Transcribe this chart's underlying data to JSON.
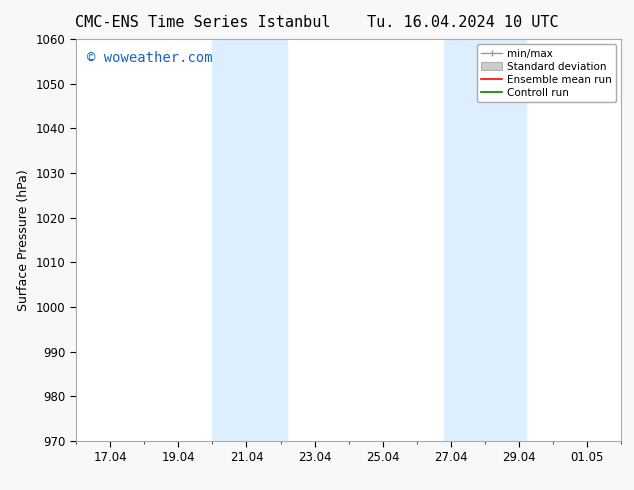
{
  "title_left": "CMC-ENS Time Series Istanbul",
  "title_right": "Tu. 16.04.2024 10 UTC",
  "ylabel": "Surface Pressure (hPa)",
  "ylim": [
    970,
    1060
  ],
  "yticks": [
    970,
    980,
    990,
    1000,
    1010,
    1020,
    1030,
    1040,
    1050,
    1060
  ],
  "xtick_labels": [
    "17.04",
    "19.04",
    "21.04",
    "23.04",
    "25.04",
    "27.04",
    "29.04",
    "01.05"
  ],
  "xtick_values": [
    17,
    19,
    21,
    23,
    25,
    27,
    29,
    31
  ],
  "xmin": 16,
  "xmax": 32,
  "shaded_regions": [
    {
      "xmin": 20.0,
      "xmax": 22.2,
      "color": "#ddeeff"
    },
    {
      "xmin": 26.8,
      "xmax": 29.2,
      "color": "#ddeeff"
    }
  ],
  "watermark_text": "© woweather.com",
  "watermark_color": "#1565c0",
  "watermark_fontsize": 10,
  "bg_color": "#f8f8f8",
  "plot_bg_color": "#ffffff",
  "legend_labels": [
    "min/max",
    "Standard deviation",
    "Ensemble mean run",
    "Controll run"
  ],
  "legend_colors": [
    "#999999",
    "#cccccc",
    "#ff0000",
    "#008000"
  ],
  "title_fontsize": 11,
  "axis_fontsize": 9,
  "tick_fontsize": 8.5
}
